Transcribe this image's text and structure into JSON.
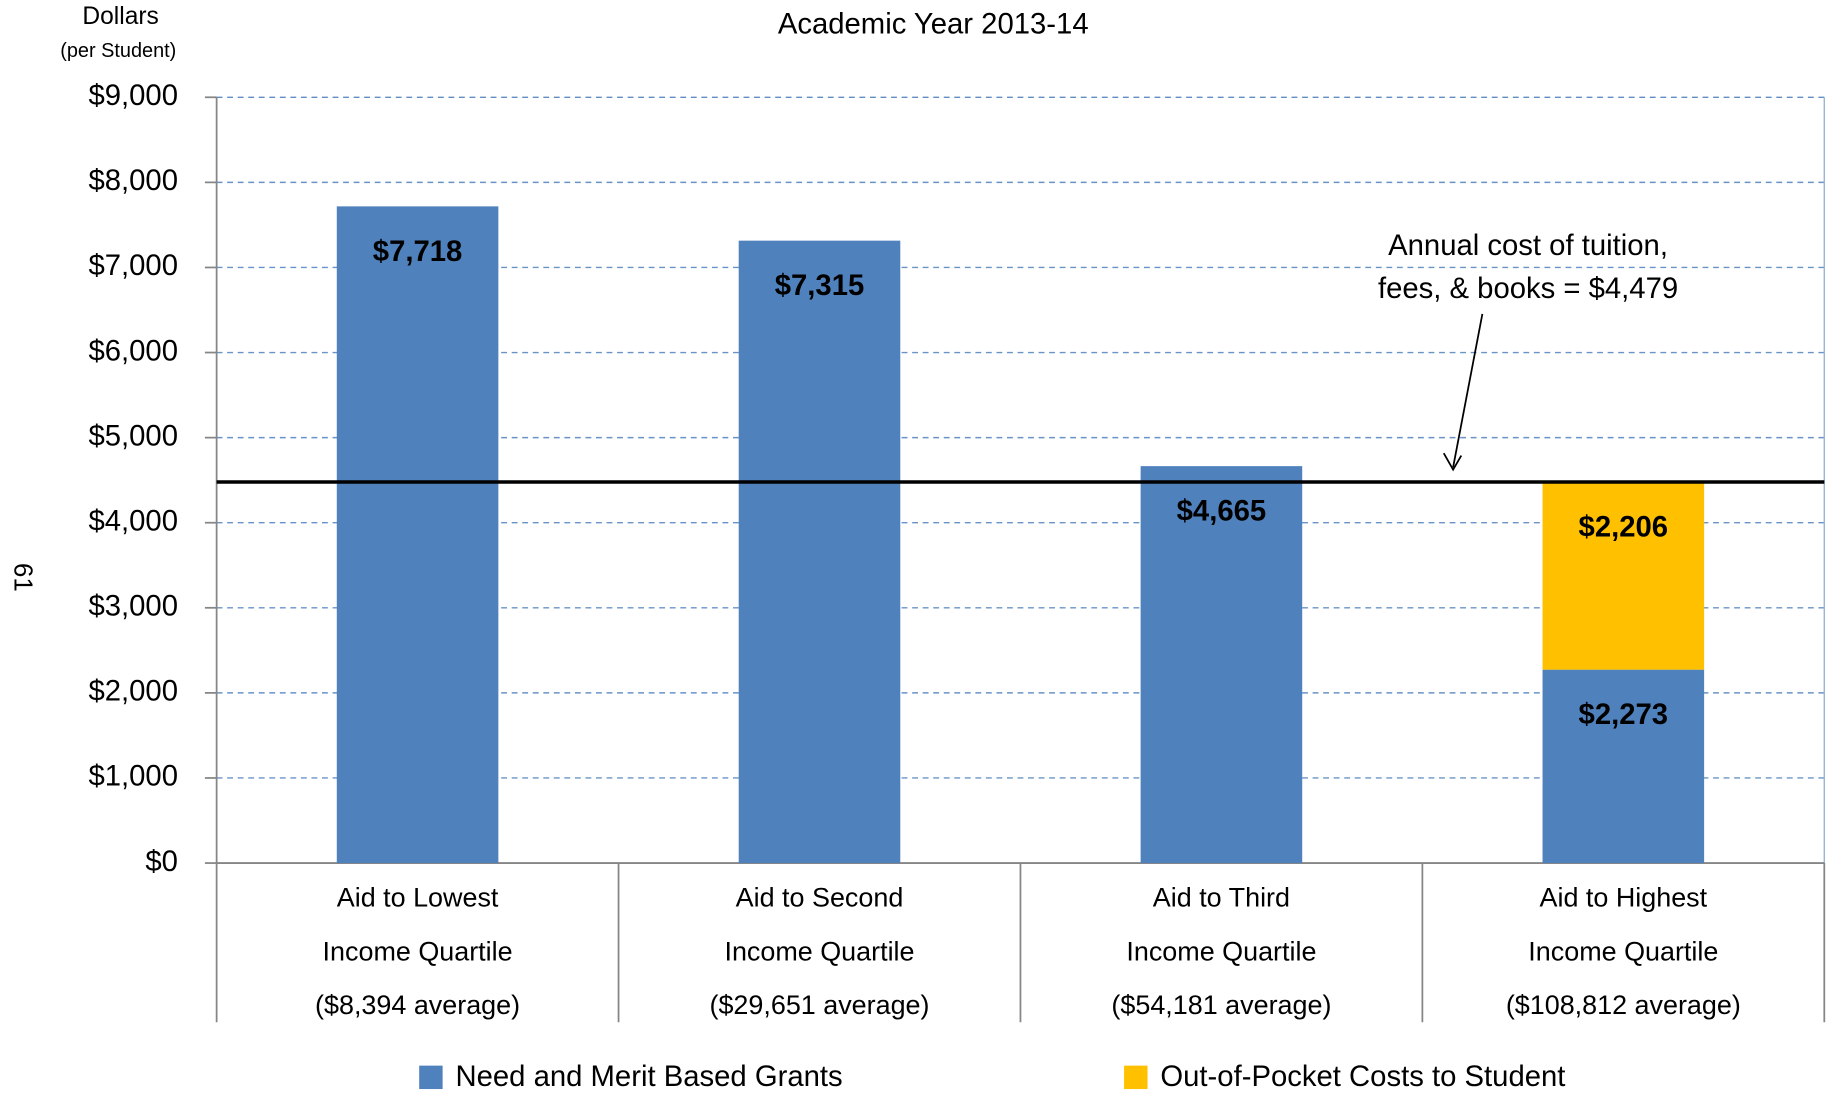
{
  "chart_data": {
    "type": "stacked_bar",
    "title": "Academic Year 2013-14",
    "y_axis_label": [
      "Dollars",
      "(per Student)"
    ],
    "page_number": "61",
    "categories": [
      [
        "Aid to Lowest",
        "Income Quartile",
        "($8,394 average)"
      ],
      [
        "Aid to Second",
        "Income Quartile",
        "($29,651 average)"
      ],
      [
        "Aid to Third",
        "Income Quartile",
        "($54,181 average)"
      ],
      [
        "Aid to Highest",
        "Income Quartile",
        "($108,812 average)"
      ]
    ],
    "series": [
      {
        "name": "Need and Merit Based Grants",
        "color": "#4f81bd",
        "values": [
          7718,
          7315,
          4665,
          2273
        ],
        "value_labels": [
          "$7,718",
          "$7,315",
          "$4,665",
          "$2,273"
        ]
      },
      {
        "name": "Out-of-Pocket Costs to Student",
        "color": "#ffc000",
        "values": [
          null,
          null,
          null,
          2206
        ],
        "value_labels": [
          null,
          null,
          null,
          "$2,206"
        ]
      }
    ],
    "reference_line": {
      "value": 4479,
      "color": "#000000",
      "text": [
        "Annual cost of tuition,",
        "fees, & books = $4,479"
      ]
    },
    "ylim": [
      0,
      9000
    ],
    "yticks": [
      {
        "value": 0,
        "label": "$0"
      },
      {
        "value": 1000,
        "label": "$1,000"
      },
      {
        "value": 2000,
        "label": "$2,000"
      },
      {
        "value": 3000,
        "label": "$3,000"
      },
      {
        "value": 4000,
        "label": "$4,000"
      },
      {
        "value": 5000,
        "label": "$5,000"
      },
      {
        "value": 6000,
        "label": "$6,000"
      },
      {
        "value": 7000,
        "label": "$7,000"
      },
      {
        "value": 8000,
        "label": "$8,000"
      },
      {
        "value": 9000,
        "label": "$9,000"
      }
    ],
    "grid": true,
    "legend": "bottom"
  }
}
